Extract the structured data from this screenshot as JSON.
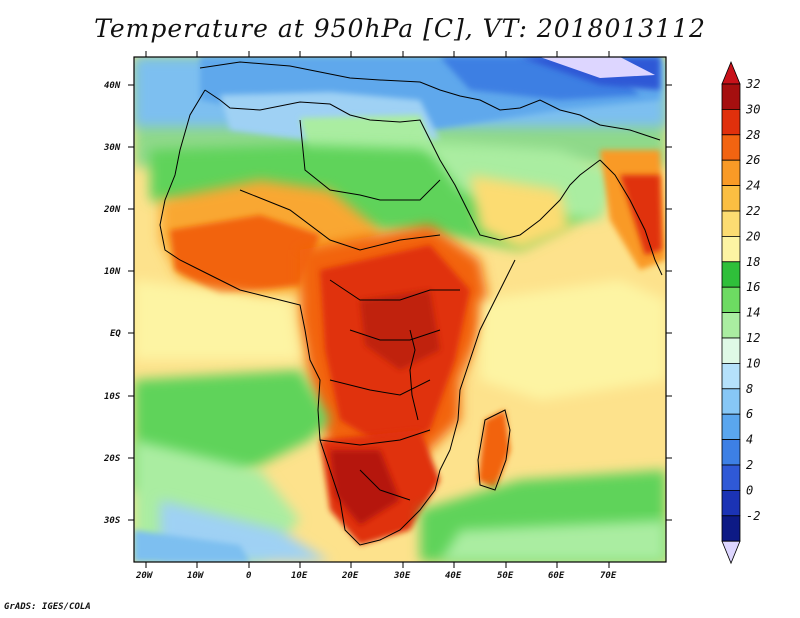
{
  "title": "Temperature at 950hPa [C], VT: 2018013112",
  "credit": "GrADS: IGES/COLA",
  "map": {
    "region": "Africa and Arabian Peninsula",
    "variable": "Temperature at 950hPa",
    "units": "C",
    "valid_time": "2018013112",
    "lon_range": [
      -25,
      80
    ],
    "lat_range": [
      -37,
      46
    ],
    "lat_labels": [
      "40N",
      "30N",
      "20N",
      "10N",
      "EQ",
      "10S",
      "20S",
      "30S"
    ],
    "lon_labels": [
      "20W",
      "10W",
      "0",
      "10E",
      "20E",
      "30E",
      "40E",
      "50E",
      "60E",
      "70E"
    ]
  },
  "colorbar": {
    "labels": [
      "32",
      "30",
      "28",
      "26",
      "24",
      "22",
      "20",
      "18",
      "16",
      "14",
      "12",
      "10",
      "8",
      "6",
      "4",
      "2",
      "0",
      "-2"
    ],
    "colors": [
      "#a50f0f",
      "#e0300c",
      "#f26411",
      "#f99a26",
      "#fbbe42",
      "#fcdc72",
      "#fdf4a3",
      "#2fbf3a",
      "#6ddb62",
      "#aaeda1",
      "#dff9e6",
      "#b5e1fb",
      "#87c7f6",
      "#5aa6ee",
      "#3d80e5",
      "#2f59d6",
      "#1b33b5",
      "#0d1a85"
    ],
    "top_color": "#c8121a",
    "bottom_color": "#ddd6ff"
  },
  "colors": {
    "ocean_warm": "#fde28c",
    "ocean_cool": "#7ad872",
    "land_hot": "#e03a0c",
    "land_warm": "#f9a733",
    "land_mild": "#4cc848",
    "mediterranean": "#7db8ef",
    "coast": "#000000"
  }
}
